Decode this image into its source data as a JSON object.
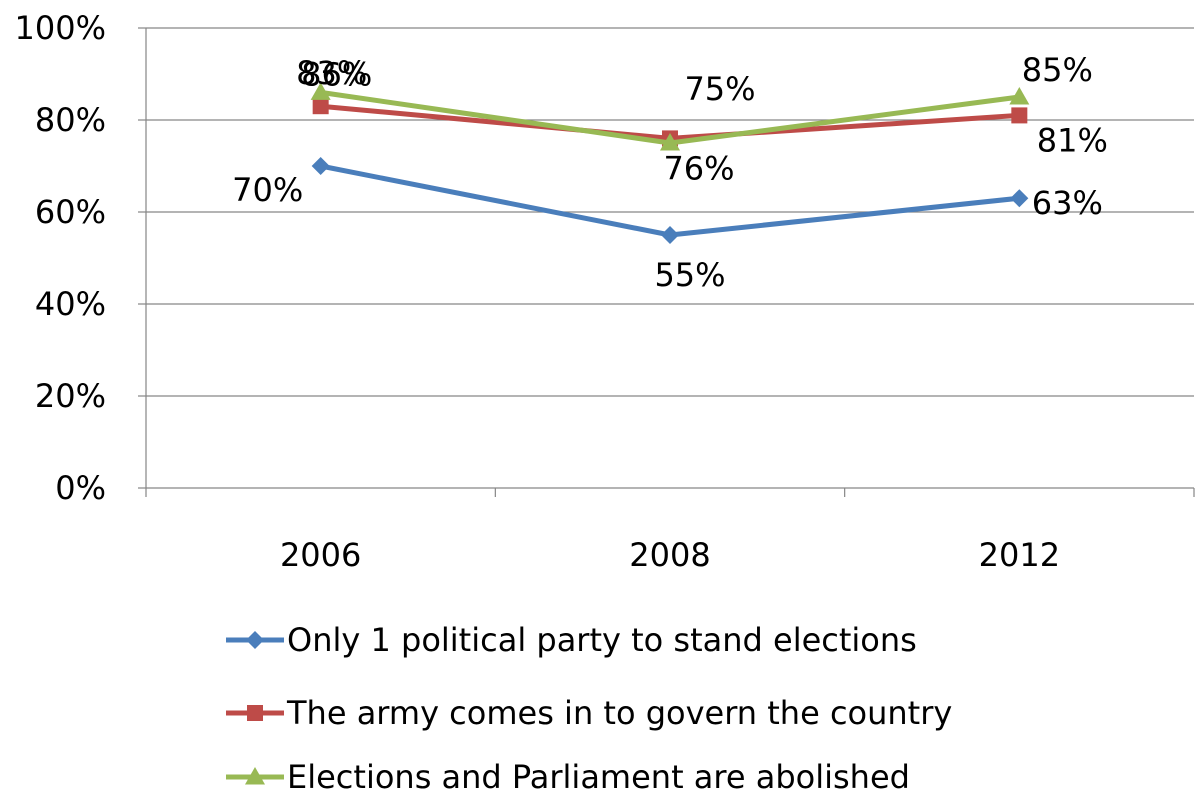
{
  "chart_data": {
    "type": "line",
    "categories": [
      "2006",
      "2008",
      "2012"
    ],
    "ylim": [
      0,
      100
    ],
    "yticks": [
      "0%",
      "20%",
      "40%",
      "60%",
      "80%",
      "100%"
    ],
    "grid": true,
    "legend_position": "bottom",
    "series": [
      {
        "name": "Only 1 political party to stand elections",
        "values": [
          70,
          55,
          63
        ],
        "labels": [
          "70%",
          "55%",
          "63%"
        ],
        "color": "#4a7ebb",
        "marker": "diamond"
      },
      {
        "name": "The army comes in to govern the country",
        "values": [
          83,
          76,
          81
        ],
        "labels": [
          "83%",
          "76%",
          "81%"
        ],
        "color": "#be4b48",
        "marker": "square"
      },
      {
        "name": "Elections and Parliament are abolished",
        "values": [
          86,
          75,
          85
        ],
        "labels": [
          "86%",
          "75%",
          "85%"
        ],
        "color": "#98b954",
        "marker": "triangle"
      }
    ]
  }
}
